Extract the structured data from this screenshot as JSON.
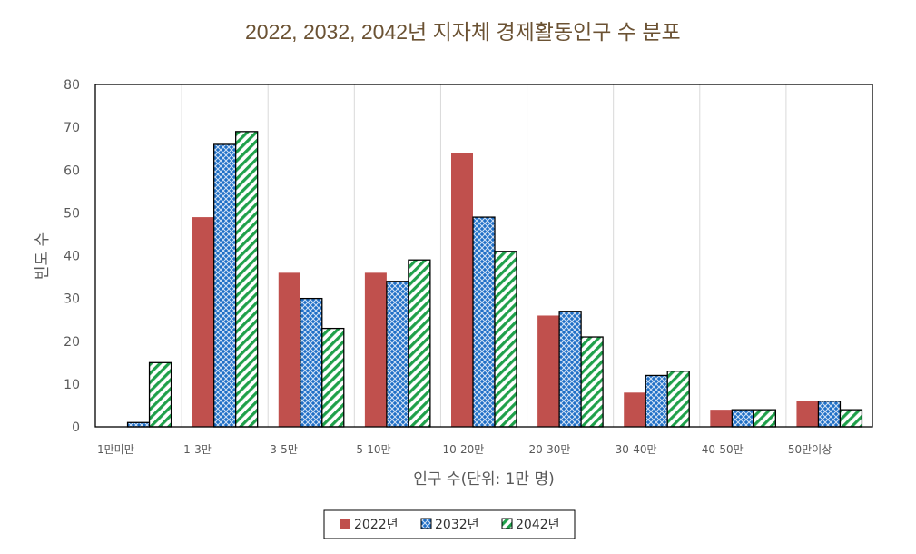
{
  "chart_data": {
    "type": "bar",
    "title": "2022, 2032, 2042년 지자체 경제활동인구 수 분포",
    "xlabel": "인구 수(단위: 1만 명)",
    "ylabel": "빈도 수",
    "ylim": [
      0,
      80
    ],
    "yticks": [
      0,
      10,
      20,
      30,
      40,
      50,
      60,
      70,
      80
    ],
    "grid": "vertical category separators",
    "legend_position": "bottom",
    "categories": [
      "1만미만",
      "1-3만",
      "3-5만",
      "5-10만",
      "10-20만",
      "20-30만",
      "30-40만",
      "40-50만",
      "50만이상"
    ],
    "series": [
      {
        "name": "2022년",
        "color": "#c0504d",
        "pattern": "solid",
        "values": [
          0,
          49,
          36,
          36,
          64,
          26,
          8,
          4,
          6
        ]
      },
      {
        "name": "2032년",
        "color": "#1f6fc6",
        "pattern": "diamond-crosshatch",
        "values": [
          1,
          66,
          30,
          34,
          49,
          27,
          12,
          4,
          6
        ]
      },
      {
        "name": "2042년",
        "color": "#1fa04a",
        "pattern": "diagonal-stripes",
        "values": [
          15,
          69,
          23,
          39,
          41,
          21,
          13,
          4,
          4
        ]
      }
    ]
  }
}
